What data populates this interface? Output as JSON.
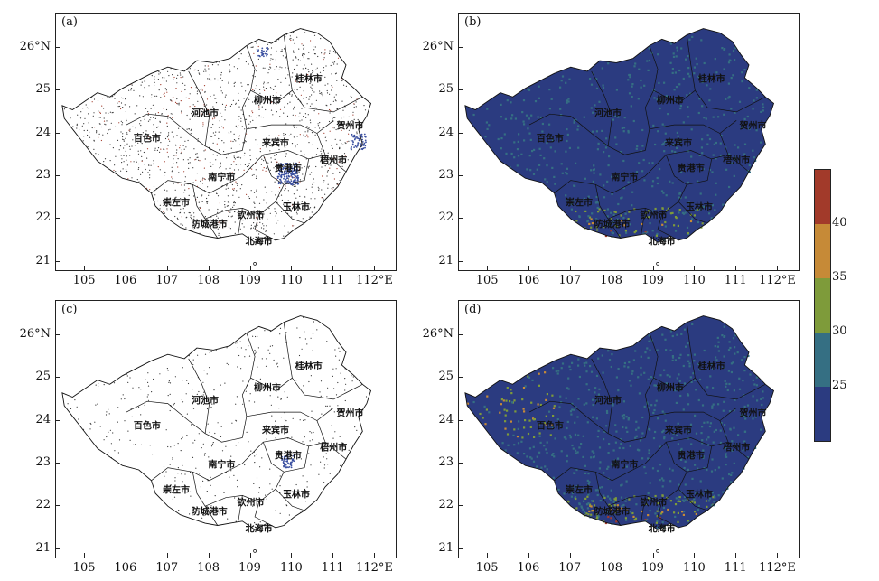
{
  "panels": [
    {
      "label": "(a)",
      "style": "points"
    },
    {
      "label": "(b)",
      "style": "raster"
    },
    {
      "label": "(c)",
      "style": "points-sparse"
    },
    {
      "label": "(d)",
      "style": "raster"
    }
  ],
  "x_ticks": [
    "105",
    "106",
    "107",
    "108",
    "109",
    "110",
    "111",
    "112°E"
  ],
  "x_tick_values": [
    105,
    106,
    107,
    108,
    109,
    110,
    111,
    112
  ],
  "y_ticks": [
    "26°N",
    "25",
    "24",
    "23",
    "22",
    "21"
  ],
  "y_tick_values": [
    26,
    25,
    24,
    23,
    22,
    21
  ],
  "lon_range": [
    104.3,
    112.5
  ],
  "lat_range": [
    20.8,
    26.8
  ],
  "cities": [
    {
      "name": "桂林市",
      "lon": 110.4,
      "lat": 25.3
    },
    {
      "name": "柳州市",
      "lon": 109.4,
      "lat": 24.8
    },
    {
      "name": "河池市",
      "lon": 107.9,
      "lat": 24.5
    },
    {
      "name": "贺州市",
      "lon": 111.4,
      "lat": 24.2
    },
    {
      "name": "百色市",
      "lon": 106.5,
      "lat": 23.9
    },
    {
      "name": "来宾市",
      "lon": 109.6,
      "lat": 23.8
    },
    {
      "name": "梧州市",
      "lon": 111.0,
      "lat": 23.4
    },
    {
      "name": "贵港市",
      "lon": 109.9,
      "lat": 23.2
    },
    {
      "name": "南宁市",
      "lon": 108.3,
      "lat": 23.0
    },
    {
      "name": "崇左市",
      "lon": 107.2,
      "lat": 22.4
    },
    {
      "name": "玉林市",
      "lon": 110.1,
      "lat": 22.3
    },
    {
      "name": "钦州市",
      "lon": 109.0,
      "lat": 22.1
    },
    {
      "name": "防城港市",
      "lon": 108.0,
      "lat": 21.9
    },
    {
      "name": "北海市",
      "lon": 109.2,
      "lat": 21.5
    }
  ],
  "colorbar": {
    "ticks": [
      "40",
      "35",
      "30",
      "25"
    ],
    "tick_values": [
      40,
      35,
      30,
      25
    ],
    "range": [
      20,
      45
    ],
    "colors": [
      "#a23a2a",
      "#c68a37",
      "#7e9b3a",
      "#356f83",
      "#2b3b80"
    ],
    "bounds": [
      [
        40,
        45
      ],
      [
        35,
        40
      ],
      [
        30,
        35
      ],
      [
        25,
        30
      ],
      [
        20,
        25
      ]
    ]
  },
  "palette": {
    "low": "#2b3b80",
    "mid": "#356f83",
    "green": "#7e9b3a",
    "orange": "#c68a37",
    "red": "#a23a2a",
    "point_blue": "#3a4fa0",
    "point_red": "#a23a2a"
  }
}
